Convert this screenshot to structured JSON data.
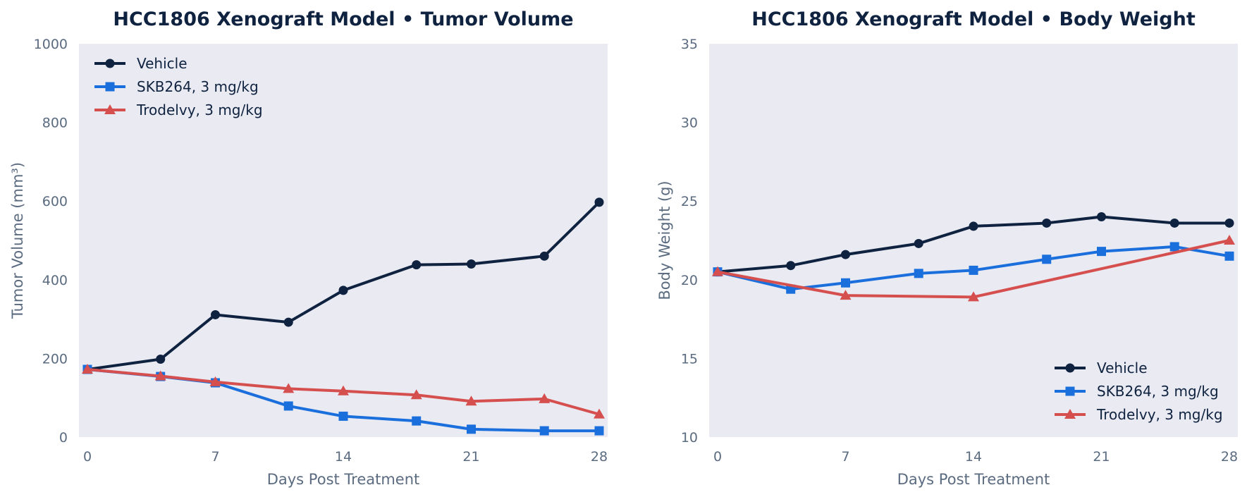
{
  "chart_data": [
    {
      "type": "line",
      "title": "HCC1806 Xenograft Model  •  Tumor Volume",
      "xlabel": "Days Post Treatment",
      "ylabel": "Tumor Volume (mm³)",
      "xlim": [
        0,
        28
      ],
      "ylim": [
        0,
        1000
      ],
      "xticks": [
        "0",
        "7",
        "14",
        "21",
        "28"
      ],
      "xtick_values": [
        0,
        7,
        14,
        21,
        28
      ],
      "yticks": [
        "0",
        "200",
        "400",
        "600",
        "800",
        "1000"
      ],
      "ytick_values": [
        0,
        200,
        400,
        600,
        800,
        1000
      ],
      "legend_position": "top-left",
      "grid": false,
      "series": [
        {
          "name": "Vehicle",
          "color": "#0f2340",
          "marker": "circle",
          "x": [
            0,
            4,
            7,
            11,
            14,
            18,
            21,
            25,
            28
          ],
          "y": [
            172,
            198,
            311,
            292,
            373,
            438,
            440,
            460,
            597
          ]
        },
        {
          "name": "SKB264, 3 mg/kg",
          "color": "#1a6fdc",
          "marker": "square",
          "x": [
            0,
            4,
            7,
            11,
            14,
            18,
            21,
            25,
            28
          ],
          "y": [
            172,
            154,
            138,
            79,
            53,
            41,
            20,
            16,
            16
          ]
        },
        {
          "name": "Trodelvy, 3 mg/kg",
          "color": "#d64f4f",
          "marker": "triangle",
          "x": [
            0,
            4,
            7,
            11,
            14,
            18,
            21,
            25,
            28
          ],
          "y": [
            172,
            155,
            140,
            123,
            117,
            107,
            91,
            97,
            58
          ]
        }
      ]
    },
    {
      "type": "line",
      "title": "HCC1806 Xenograft Model  •  Body Weight",
      "xlabel": "Days Post Treatment",
      "ylabel": "Body Weight (g)",
      "xlim": [
        0,
        28
      ],
      "ylim": [
        10,
        35
      ],
      "xticks": [
        "0",
        "7",
        "14",
        "21",
        "28"
      ],
      "xtick_values": [
        0,
        7,
        14,
        21,
        28
      ],
      "yticks": [
        "10",
        "15",
        "20",
        "25",
        "30",
        "35"
      ],
      "ytick_values": [
        10,
        15,
        20,
        25,
        30,
        35
      ],
      "legend_position": "bottom-right",
      "grid": false,
      "series": [
        {
          "name": "Vehicle",
          "color": "#0f2340",
          "marker": "circle",
          "x": [
            0,
            4,
            7,
            11,
            14,
            18,
            21,
            25,
            28
          ],
          "y": [
            20.5,
            20.9,
            21.6,
            22.3,
            23.4,
            23.6,
            24.0,
            23.6,
            23.6
          ]
        },
        {
          "name": "SKB264, 3 mg/kg",
          "color": "#1a6fdc",
          "marker": "square",
          "x": [
            0,
            4,
            7,
            11,
            14,
            18,
            21,
            25,
            28
          ],
          "y": [
            20.5,
            19.4,
            19.8,
            20.4,
            20.6,
            21.3,
            21.8,
            22.1,
            21.5
          ]
        },
        {
          "name": "Trodelvy, 3 mg/kg",
          "color": "#d64f4f",
          "marker": "triangle",
          "x": [
            0,
            7,
            14,
            28
          ],
          "y": [
            20.5,
            19.0,
            18.9,
            22.5
          ]
        }
      ]
    }
  ]
}
